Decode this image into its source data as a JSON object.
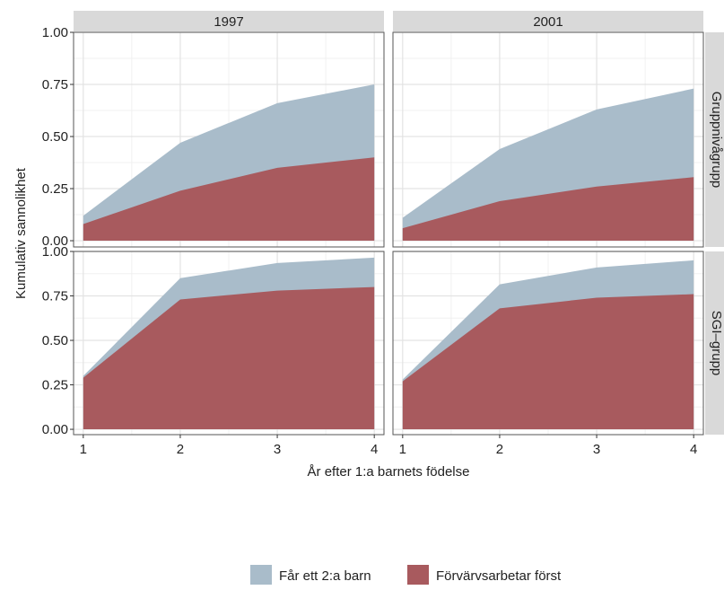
{
  "chart_data": {
    "type": "area",
    "xlabel": "År efter 1:a barnets födelse",
    "ylabel": "Kumulativ sannolikhet",
    "x": [
      1,
      2,
      3,
      4
    ],
    "xlim": [
      0.9,
      4.1
    ],
    "ylim": [
      -0.03,
      1.0
    ],
    "x_ticks": [
      "1",
      "2",
      "3",
      "4"
    ],
    "y_ticks": [
      "0.00",
      "0.25",
      "0.50",
      "0.75",
      "1.00"
    ],
    "grid": true,
    "legend_position": "bottom",
    "facet_columns": [
      "1997",
      "2001"
    ],
    "facet_rows": [
      "Gruppnivågrupp",
      "SGI–grupp"
    ],
    "series": [
      {
        "name": "Får ett 2:a barn",
        "color": "#a9bcca"
      },
      {
        "name": "Förvärvsarbetar först",
        "color": "#a85a5e"
      }
    ],
    "panels": [
      {
        "col": "1997",
        "row": "Gruppnivågrupp",
        "values": {
          "Får ett 2:a barn": [
            0.12,
            0.47,
            0.66,
            0.75
          ],
          "Förvärvsarbetar först": [
            0.08,
            0.24,
            0.35,
            0.4
          ]
        }
      },
      {
        "col": "2001",
        "row": "Gruppnivågrupp",
        "values": {
          "Får ett 2:a barn": [
            0.11,
            0.44,
            0.63,
            0.73
          ],
          "Förvärvsarbetar först": [
            0.06,
            0.19,
            0.26,
            0.305
          ]
        }
      },
      {
        "col": "1997",
        "row": "SGI–grupp",
        "values": {
          "Får ett 2:a barn": [
            0.3,
            0.85,
            0.935,
            0.965
          ],
          "Förvärvsarbetar först": [
            0.29,
            0.73,
            0.78,
            0.8
          ]
        }
      },
      {
        "col": "2001",
        "row": "SGI–grupp",
        "values": {
          "Får ett 2:a barn": [
            0.28,
            0.815,
            0.91,
            0.95
          ],
          "Förvärvsarbetar först": [
            0.27,
            0.68,
            0.74,
            0.76
          ]
        }
      }
    ]
  }
}
